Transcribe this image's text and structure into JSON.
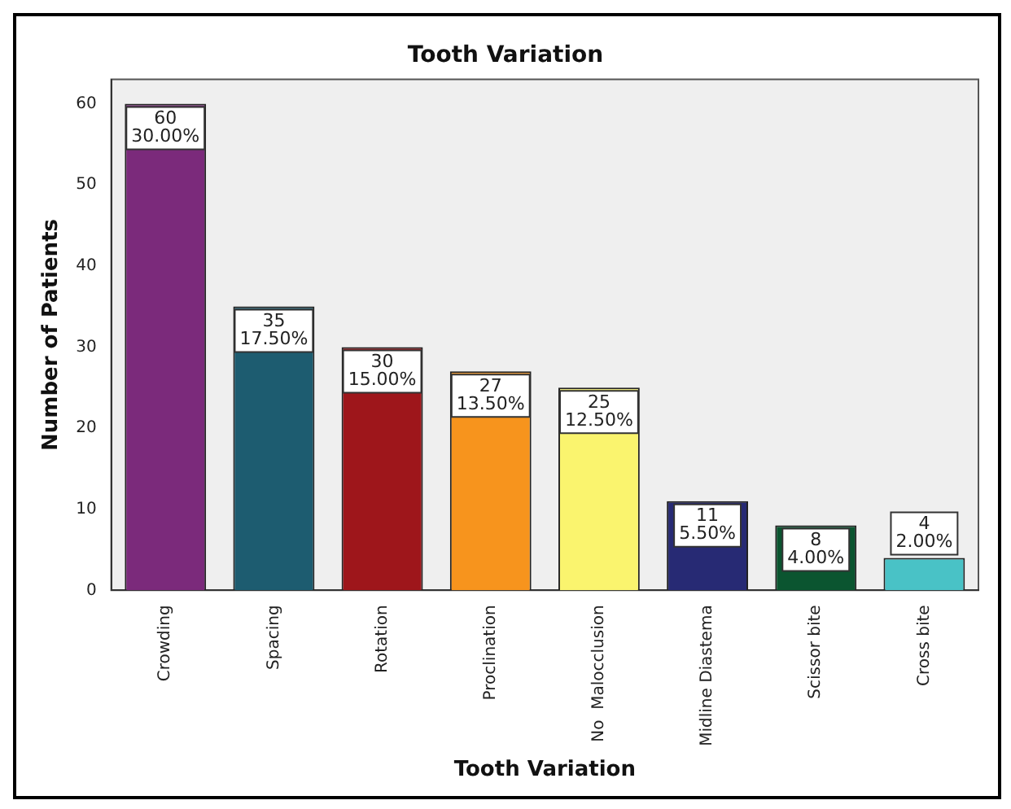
{
  "chart_data": {
    "type": "bar",
    "title": "Tooth Variation",
    "xlabel": "Tooth Variation",
    "ylabel": "Number of Patients",
    "categories": [
      "Crowding",
      "Spacing",
      "Rotation",
      "Proclination",
      "No  Malocclusion",
      "Midline Diastema",
      "Scissor bite",
      "Cross bite"
    ],
    "values": [
      60,
      35,
      30,
      27,
      25,
      11,
      8,
      4
    ],
    "colors": [
      "#7b2a7b",
      "#1d5c70",
      "#9e161b",
      "#f7941d",
      "#faf46e",
      "#272a74",
      "#0b5530",
      "#49c2c6"
    ],
    "value_labels": [
      "60\n30.00%",
      "35\n17.50%",
      "30\n15.00%",
      "27\n13.50%",
      "25\n12.50%",
      "11\n5.50%",
      "8\n4.00%",
      "4\n2.00%"
    ],
    "ylim": [
      0,
      63
    ],
    "yticks": [
      0,
      10,
      20,
      30,
      40,
      50,
      60
    ],
    "grid": false,
    "legend": false
  }
}
